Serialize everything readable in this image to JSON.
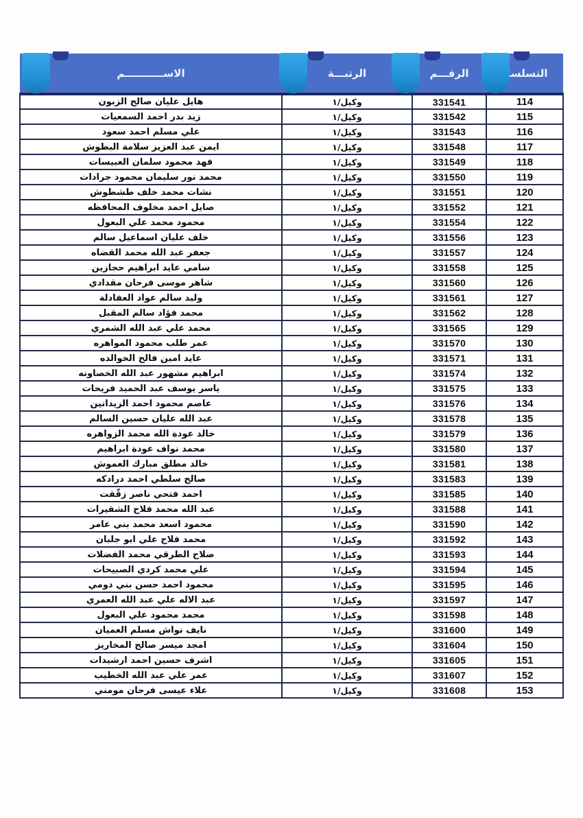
{
  "table": {
    "headers": {
      "serial": "التسلسل",
      "number": "الرقـــم",
      "rank": "الرتبـــة",
      "name": "الاســـــــــــم"
    },
    "rows": [
      {
        "serial": "114",
        "number": "331541",
        "rank": "وكيل/١",
        "name": "هايل عليان صالح الزبون"
      },
      {
        "serial": "115",
        "number": "331542",
        "rank": "وكيل/١",
        "name": "زيد بدر احمد السمعيات"
      },
      {
        "serial": "116",
        "number": "331543",
        "rank": "وكيل/١",
        "name": "علي مسلم احمد سعود"
      },
      {
        "serial": "117",
        "number": "331548",
        "rank": "وكيل/١",
        "name": "ايمن عبد العزيز سلامة البطوش"
      },
      {
        "serial": "118",
        "number": "331549",
        "rank": "وكيل/١",
        "name": "فهد محمود سلمان العبيسات"
      },
      {
        "serial": "119",
        "number": "331550",
        "rank": "وكيل/١",
        "name": "محمد نور سليمان محمود جرادات"
      },
      {
        "serial": "120",
        "number": "331551",
        "rank": "وكيل/١",
        "name": "نشات محمد خلف طشطوش"
      },
      {
        "serial": "121",
        "number": "331552",
        "rank": "وكيل/١",
        "name": "صايل احمد مخلوف المحافظه"
      },
      {
        "serial": "122",
        "number": "331554",
        "rank": "وكيل/١",
        "name": "محمود محمد علي البعول"
      },
      {
        "serial": "123",
        "number": "331556",
        "rank": "وكيل/١",
        "name": "خلف عليان اسماعيل سالم"
      },
      {
        "serial": "124",
        "number": "331557",
        "rank": "وكيل/١",
        "name": "جعفر عبد الله محمد القضاه"
      },
      {
        "serial": "125",
        "number": "331558",
        "rank": "وكيل/١",
        "name": "سامي عايد ابراهيم حجازين"
      },
      {
        "serial": "126",
        "number": "331560",
        "rank": "وكيل/١",
        "name": "شاهر موسى فرحان مقدادي"
      },
      {
        "serial": "127",
        "number": "331561",
        "rank": "وكيل/١",
        "name": "وليد سالم عواد العفادلة"
      },
      {
        "serial": "128",
        "number": "331562",
        "rank": "وكيل/١",
        "name": "محمد فؤاد سالم المقبل"
      },
      {
        "serial": "129",
        "number": "331565",
        "rank": "وكيل/١",
        "name": "محمد علي عبد الله الشمري"
      },
      {
        "serial": "130",
        "number": "331570",
        "rank": "وكيل/١",
        "name": "عمر طلب محمود المواهره"
      },
      {
        "serial": "131",
        "number": "331571",
        "rank": "وكيل/١",
        "name": "عايد امين فالح الخوالده"
      },
      {
        "serial": "132",
        "number": "331574",
        "rank": "وكيل/١",
        "name": "ابراهيم مشهور عبد الله الخصاونه"
      },
      {
        "serial": "133",
        "number": "331575",
        "rank": "وكيل/١",
        "name": "ياسر يوسف عبد الحميد فريحات"
      },
      {
        "serial": "134",
        "number": "331576",
        "rank": "وكيل/١",
        "name": "عاصم محمود احمد الزيدانين"
      },
      {
        "serial": "135",
        "number": "331578",
        "rank": "وكيل/١",
        "name": "عبد الله عليان حسين السالم"
      },
      {
        "serial": "136",
        "number": "331579",
        "rank": "وكيل/١",
        "name": "خالد عودة الله محمد الزواهره"
      },
      {
        "serial": "137",
        "number": "331580",
        "rank": "وكيل/١",
        "name": "محمد نواف عودة ابراهيم"
      },
      {
        "serial": "138",
        "number": "331581",
        "rank": "وكيل/١",
        "name": "خالد مطلق مبارك العموش"
      },
      {
        "serial": "139",
        "number": "331583",
        "rank": "وكيل/١",
        "name": "صالح سلطي احمد درادكه"
      },
      {
        "serial": "140",
        "number": "331585",
        "rank": "وكيل/١",
        "name": "احمد فتحي ناصر زقّقت"
      },
      {
        "serial": "141",
        "number": "331588",
        "rank": "وكيل/١",
        "name": "عبد الله محمد فلاح الشقيرات"
      },
      {
        "serial": "142",
        "number": "331590",
        "rank": "وكيل/١",
        "name": "محمود اسعد محمد بني عامر"
      },
      {
        "serial": "143",
        "number": "331592",
        "rank": "وكيل/١",
        "name": "محمد فلاح علي ابو جلبان"
      },
      {
        "serial": "144",
        "number": "331593",
        "rank": "وكيل/١",
        "name": "صلاح الطرقي محمد الفضلات"
      },
      {
        "serial": "145",
        "number": "331594",
        "rank": "وكيل/١",
        "name": "علي محمد كردي الصبيحات"
      },
      {
        "serial": "146",
        "number": "331595",
        "rank": "وكيل/١",
        "name": "محمود احمد حسن بني دومي"
      },
      {
        "serial": "147",
        "number": "331597",
        "rank": "وكيل/١",
        "name": "عبد الاله علي عبد الله العمري"
      },
      {
        "serial": "148",
        "number": "331598",
        "rank": "وكيل/١",
        "name": "محمد محمود علي البعول"
      },
      {
        "serial": "149",
        "number": "331600",
        "rank": "وكيل/١",
        "name": "نايف نواش مسلم العميان"
      },
      {
        "serial": "150",
        "number": "331604",
        "rank": "وكيل/١",
        "name": "امجد ميسر صالح المخاريز"
      },
      {
        "serial": "151",
        "number": "331605",
        "rank": "وكيل/١",
        "name": "اشرف حسين احمد ارشيدات"
      },
      {
        "serial": "152",
        "number": "331607",
        "rank": "وكيل/١",
        "name": "عمر علي عبد الله الخطيب"
      },
      {
        "serial": "153",
        "number": "331608",
        "rank": "وكيل/١",
        "name": "علاء عيسى فرحان مومني"
      }
    ]
  },
  "colors": {
    "header_blue": "#4a6fc8",
    "serial_cell_blue": "#4472c4",
    "tab_pill_blue": "#2495d8",
    "tab_notch_navy": "#2c3a91",
    "grid_border": "#20294d",
    "header_text": "#eff4ff",
    "body_text": "#0d0d0d"
  }
}
